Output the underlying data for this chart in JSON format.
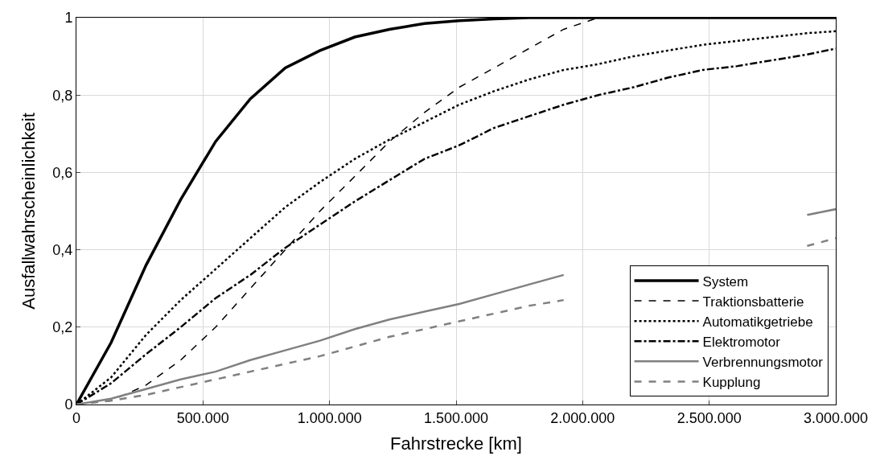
{
  "chart_data": {
    "type": "line",
    "xlabel": "Fahrstrecke [km]",
    "ylabel": "Ausfallwahrscheinlichkeit",
    "x": [
      0,
      137000,
      275000,
      412000,
      550000,
      687000,
      825000,
      962000,
      1100000,
      1237000,
      1375000,
      1512000,
      1650000,
      1787000,
      1925000,
      2062000,
      2200000,
      2337000,
      2475000,
      2612000,
      2750000,
      2887000,
      3000000
    ],
    "series": [
      {
        "name": "System",
        "color": "#000000",
        "line_style": "solid",
        "values": [
          0,
          0.16,
          0.36,
          0.53,
          0.68,
          0.79,
          0.87,
          0.915,
          0.95,
          0.97,
          0.985,
          0.992,
          0.997,
          1,
          1,
          1,
          1,
          1,
          1,
          1,
          1,
          1,
          1
        ]
      },
      {
        "name": "Traktionsbatterie",
        "color": "#000000",
        "line_style": "dashed",
        "values": [
          0,
          0.01,
          0.05,
          0.115,
          0.2,
          0.3,
          0.4,
          0.5,
          0.59,
          0.68,
          0.755,
          0.82,
          0.87,
          0.92,
          0.97,
          1,
          1,
          1,
          1,
          1,
          1,
          1,
          1
        ]
      },
      {
        "name": "Automatikgetriebe",
        "color": "#000000",
        "line_style": "dotted",
        "values": [
          0,
          0.07,
          0.18,
          0.27,
          0.35,
          0.43,
          0.51,
          0.575,
          0.635,
          0.685,
          0.73,
          0.775,
          0.81,
          0.84,
          0.865,
          0.88,
          0.9,
          0.915,
          0.93,
          0.94,
          0.95,
          0.96,
          0.965
        ]
      },
      {
        "name": "Elektromotor",
        "color": "#000000",
        "line_style": "dashdot",
        "values": [
          0,
          0.055,
          0.13,
          0.2,
          0.275,
          0.335,
          0.405,
          0.465,
          0.525,
          0.58,
          0.635,
          0.67,
          0.715,
          0.745,
          0.775,
          0.8,
          0.82,
          0.845,
          0.865,
          0.875,
          0.89,
          0.905,
          0.92
        ]
      },
      {
        "name": "Verbrennungsmotor",
        "color": "#808080",
        "line_style": "solid",
        "values": [
          0,
          0.015,
          0.04,
          0.065,
          0.085,
          0.115,
          0.14,
          0.165,
          0.195,
          0.22,
          0.24,
          0.26,
          0.285,
          0.31,
          0.335,
          null,
          null,
          null,
          null,
          null,
          null,
          0.49,
          0.505
        ]
      },
      {
        "name": "Kupplung",
        "color": "#808080",
        "line_style": "dashed",
        "values": [
          0,
          0.01,
          0.025,
          0.045,
          0.065,
          0.085,
          0.105,
          0.125,
          0.15,
          0.175,
          0.195,
          0.215,
          0.235,
          0.255,
          0.27,
          null,
          null,
          null,
          null,
          null,
          null,
          0.41,
          0.43
        ]
      }
    ],
    "xlim": [
      0,
      3000000
    ],
    "xticks": [
      0,
      {
        "value": 500000,
        "label": "500.000"
      },
      {
        "value": 1000000,
        "label": "1.000.000"
      },
      {
        "value": 1500000,
        "label": "1.500.000"
      },
      {
        "value": 2000000,
        "label": "2.000.000"
      },
      {
        "value": 2500000,
        "label": "2.500.000"
      },
      {
        "value": 3000000,
        "label": "3.000.000"
      }
    ],
    "ylim": [
      0,
      1
    ],
    "yticks": [
      0,
      {
        "value": 0.2,
        "label": "0,2"
      },
      {
        "value": 0.4,
        "label": "0,4"
      },
      {
        "value": 0.6,
        "label": "0,6"
      },
      {
        "value": 0.8,
        "label": "0,8"
      },
      1
    ],
    "grid": true,
    "legend": "bottom right",
    "marker": "none"
  }
}
